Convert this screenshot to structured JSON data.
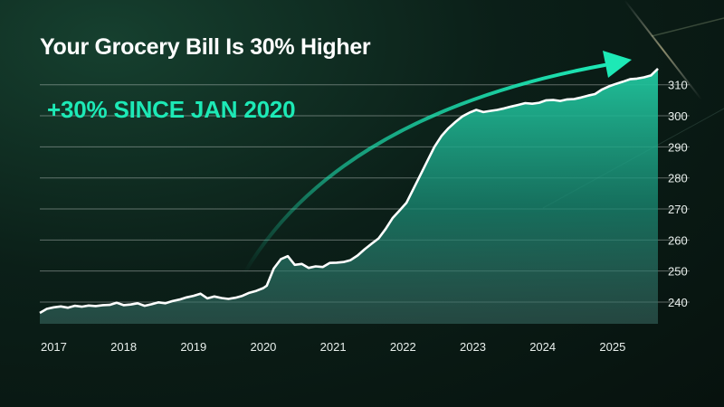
{
  "colors": {
    "accent": "#1de9b6",
    "line": "#ffffff",
    "background": "#0b1f18"
  },
  "chart_data": {
    "type": "area",
    "title": "Your Grocery Bill Is 30% Higher",
    "annotation": "+30% SINCE JAN 2020",
    "xlabel": "",
    "ylabel": "",
    "ylim": [
      233,
      314
    ],
    "xlim": [
      2017.0,
      2025.85
    ],
    "x_ticks": [
      {
        "label": "2017",
        "x": 2017.2
      },
      {
        "label": "2018",
        "x": 2018.2
      },
      {
        "label": "2019",
        "x": 2019.2
      },
      {
        "label": "2020",
        "x": 2020.2
      },
      {
        "label": "2021",
        "x": 2021.2
      },
      {
        "label": "2022",
        "x": 2022.2
      },
      {
        "label": "2023",
        "x": 2023.2
      },
      {
        "label": "2024",
        "x": 2024.2
      },
      {
        "label": "2025",
        "x": 2025.2
      }
    ],
    "y_ticks": [
      240,
      250,
      260,
      270,
      280,
      290,
      300,
      310
    ],
    "grid": true,
    "series": [
      {
        "x": [
          2017.0,
          2017.1,
          2017.2,
          2017.3,
          2017.4,
          2017.5,
          2017.6,
          2017.7,
          2017.8,
          2017.9,
          2018.0,
          2018.1,
          2018.2,
          2018.3,
          2018.4,
          2018.5,
          2018.6,
          2018.7,
          2018.8,
          2018.9,
          2019.0,
          2019.1,
          2019.2,
          2019.3,
          2019.4,
          2019.5,
          2019.6,
          2019.7,
          2019.8,
          2019.9,
          2020.0,
          2020.1,
          2020.2,
          2020.25,
          2020.35,
          2020.45,
          2020.55,
          2020.65,
          2020.75,
          2020.85,
          2020.95,
          2021.05,
          2021.15,
          2021.25,
          2021.35,
          2021.45,
          2021.55,
          2021.65,
          2021.75,
          2021.85,
          2021.95,
          2022.05,
          2022.15,
          2022.25,
          2022.35,
          2022.45,
          2022.55,
          2022.65,
          2022.75,
          2022.85,
          2022.95,
          2023.05,
          2023.15,
          2023.25,
          2023.35,
          2023.45,
          2023.55,
          2023.65,
          2023.75,
          2023.85,
          2023.95,
          2024.05,
          2024.15,
          2024.25,
          2024.35,
          2024.45,
          2024.55,
          2024.65,
          2024.75,
          2024.85,
          2024.95,
          2025.05,
          2025.15,
          2025.25,
          2025.35,
          2025.45,
          2025.55,
          2025.65,
          2025.75,
          2025.85
        ],
        "values": [
          236.5,
          237.8,
          238.3,
          238.6,
          238.2,
          238.8,
          238.5,
          238.9,
          238.7,
          239.0,
          239.1,
          239.8,
          239.0,
          239.2,
          239.6,
          238.8,
          239.3,
          239.9,
          239.6,
          240.3,
          240.8,
          241.5,
          242.0,
          242.7,
          241.2,
          241.8,
          241.3,
          241.0,
          241.4,
          242.0,
          243.0,
          243.6,
          244.5,
          245.3,
          250.8,
          253.8,
          254.8,
          252.0,
          252.3,
          251.0,
          251.5,
          251.3,
          252.6,
          252.7,
          252.9,
          253.5,
          255.0,
          257.0,
          258.8,
          260.5,
          263.5,
          267.0,
          269.5,
          272.0,
          276.5,
          281.0,
          285.5,
          290.0,
          293.5,
          296.0,
          298.0,
          299.8,
          301.0,
          301.9,
          301.2,
          301.6,
          301.9,
          302.4,
          303.0,
          303.5,
          304.1,
          303.9,
          304.2,
          305.0,
          305.1,
          304.8,
          305.3,
          305.4,
          305.9,
          306.5,
          307.0,
          308.5,
          309.5,
          310.3,
          311.0,
          311.8,
          312.0,
          312.4,
          313.0,
          315.2
        ]
      }
    ]
  }
}
